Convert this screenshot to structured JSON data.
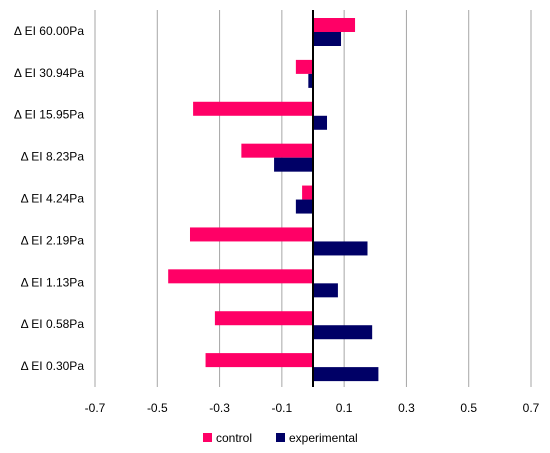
{
  "chart_data": {
    "type": "bar",
    "orientation": "horizontal",
    "categories": [
      "Δ EI 60.00Pa",
      "Δ EI 30.94Pa",
      "Δ EI 15.95Pa",
      "Δ EI 8.23Pa",
      "Δ EI 4.24Pa",
      "Δ EI 2.19Pa",
      "Δ EI 1.13Pa",
      "Δ EI 0.58Pa",
      "Δ EI 0.30Pa"
    ],
    "series": [
      {
        "name": "control",
        "color": "#ff0066",
        "values": [
          0.135,
          -0.055,
          -0.385,
          -0.23,
          -0.035,
          -0.395,
          -0.465,
          -0.315,
          -0.345
        ]
      },
      {
        "name": "experimental",
        "color": "#000066",
        "values": [
          0.09,
          -0.015,
          0.045,
          -0.125,
          -0.055,
          0.175,
          0.08,
          0.19,
          0.21
        ]
      }
    ],
    "xlim": [
      -0.7,
      0.7
    ],
    "xticks": [
      -0.7,
      -0.5,
      -0.3,
      -0.1,
      0.1,
      0.3,
      0.5,
      0.7
    ],
    "xtick_labels": [
      "-0.7",
      "-0.5",
      "-0.3",
      "-0.1",
      "0.1",
      "0.3",
      "0.5",
      "0.7"
    ],
    "grid": "vertical",
    "legend_position": "bottom"
  }
}
